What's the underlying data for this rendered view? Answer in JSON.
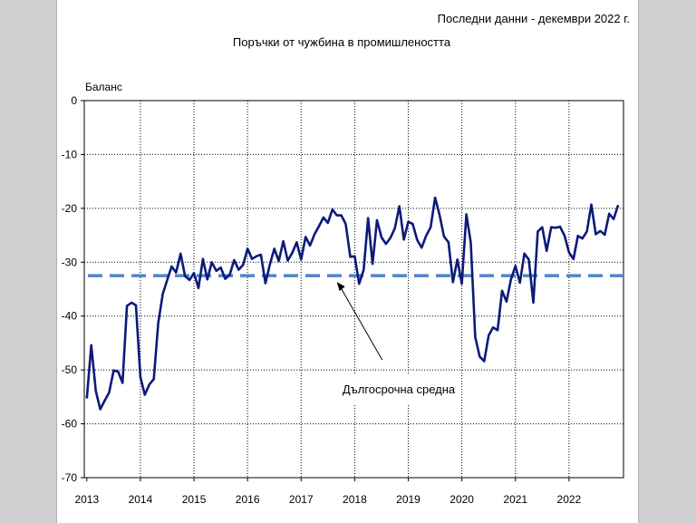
{
  "header": {
    "last_data_note": "Последни данни - декември 2022 г."
  },
  "chart_data": {
    "type": "line",
    "title": "Поръчки от чужбина в промишлеността",
    "ylabel": "Баланс",
    "xlabel": "",
    "ylim": [
      -70,
      0
    ],
    "yticks": [
      0,
      -10,
      -20,
      -30,
      -40,
      -50,
      -60,
      -70
    ],
    "xlim": [
      2013,
      2023
    ],
    "xticks": [
      "2013",
      "2014",
      "2015",
      "2016",
      "2017",
      "2018",
      "2019",
      "2020",
      "2021",
      "2022"
    ],
    "grid": true,
    "series": [
      {
        "color": "#0d1a7a",
        "x_start": "2013-01",
        "frequency": "monthly",
        "values": [
          -55.3,
          -45.4,
          -53.9,
          -57.3,
          -55.7,
          -54.2,
          -50.1,
          -50.3,
          -52.4,
          -38.1,
          -37.5,
          -38.0,
          -51.3,
          -54.6,
          -52.7,
          -51.7,
          -41.3,
          -35.9,
          -33.3,
          -30.8,
          -31.9,
          -28.4,
          -32.6,
          -33.3,
          -32.0,
          -34.8,
          -29.4,
          -33.2,
          -30.0,
          -31.6,
          -31.0,
          -33.1,
          -32.3,
          -29.6,
          -31.4,
          -30.5,
          -27.5,
          -29.4,
          -28.9,
          -28.6,
          -33.9,
          -30.4,
          -27.5,
          -29.8,
          -26.1,
          -29.7,
          -28.3,
          -26.3,
          -29.5,
          -25.3,
          -26.9,
          -24.8,
          -23.3,
          -21.7,
          -22.7,
          -20.2,
          -21.3,
          -21.3,
          -22.9,
          -29.0,
          -28.9,
          -34.0,
          -31.4,
          -21.8,
          -30.3,
          -22.2,
          -25.4,
          -26.6,
          -25.5,
          -23.7,
          -19.6,
          -25.8,
          -22.5,
          -22.9,
          -25.9,
          -27.3,
          -25.1,
          -23.5,
          -18.0,
          -21.2,
          -25.2,
          -26.3,
          -33.7,
          -29.5,
          -34.0,
          -21.1,
          -26.4,
          -43.9,
          -47.5,
          -48.4,
          -43.6,
          -42.1,
          -42.6,
          -35.3,
          -37.3,
          -33.2,
          -30.7,
          -33.8,
          -28.4,
          -29.5,
          -37.5,
          -24.3,
          -23.5,
          -27.9,
          -23.5,
          -23.6,
          -23.4,
          -25.1,
          -28.2,
          -29.4,
          -25.1,
          -25.6,
          -24.3,
          -19.3,
          -24.8,
          -24.2,
          -24.9,
          -21.0,
          -22.0,
          -19.4
        ]
      }
    ],
    "reference_lines": [
      {
        "value": -32.5,
        "color": "#4f86c9",
        "style": "dashed"
      }
    ],
    "annotations": [
      {
        "text": "Дългосрочна средна",
        "points_to": "reference_line",
        "x": "2017-09"
      }
    ]
  }
}
